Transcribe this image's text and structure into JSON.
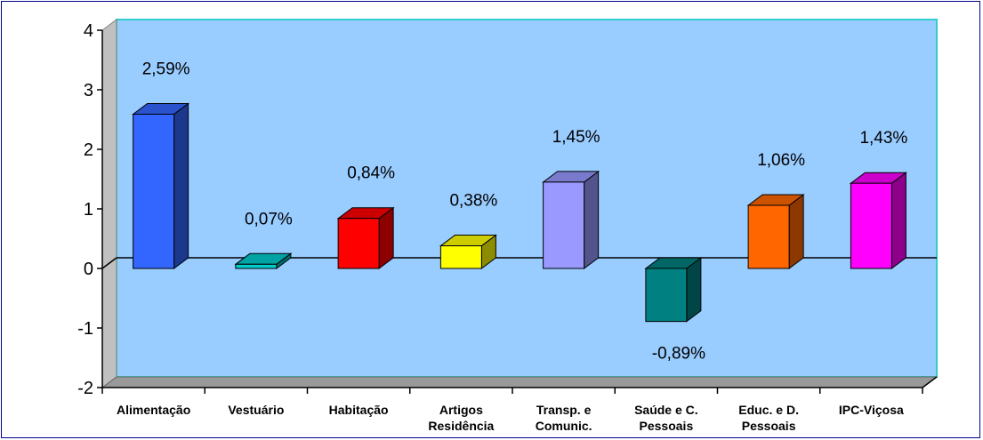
{
  "chart_data": {
    "type": "bar",
    "three_d": true,
    "categories": [
      [
        "Alimentação"
      ],
      [
        "Vestuário"
      ],
      [
        "Habitação"
      ],
      [
        "Artigos",
        "Residência"
      ],
      [
        "Transp. e",
        "Comunic."
      ],
      [
        "Saúde e C.",
        "Pessoais"
      ],
      [
        "Educ. e D.",
        "Pessoais"
      ],
      [
        "IPC-Viçosa"
      ]
    ],
    "values": [
      2.59,
      0.07,
      0.84,
      0.38,
      1.45,
      -0.89,
      1.06,
      1.43
    ],
    "data_labels": [
      "2,59%",
      "0,07%",
      "0,84%",
      "0,38%",
      "1,45%",
      "-0,89%",
      "1,06%",
      "1,43%"
    ],
    "bar_colors": [
      "#3366ff",
      "#00cccc",
      "#ff0000",
      "#ffff00",
      "#9999ff",
      "#008080",
      "#ff6600",
      "#ff00ff"
    ],
    "ylim": [
      -2,
      4
    ],
    "yticks": [
      "4",
      "3",
      "2",
      "1",
      "0",
      "-1",
      "-2"
    ],
    "ytick_values": [
      4,
      3,
      2,
      1,
      0,
      -1,
      -2
    ],
    "plot_background": "#99ccff",
    "wall_border": "#33cccc",
    "floor_color": "#999999",
    "grid": false,
    "legend": "none"
  }
}
